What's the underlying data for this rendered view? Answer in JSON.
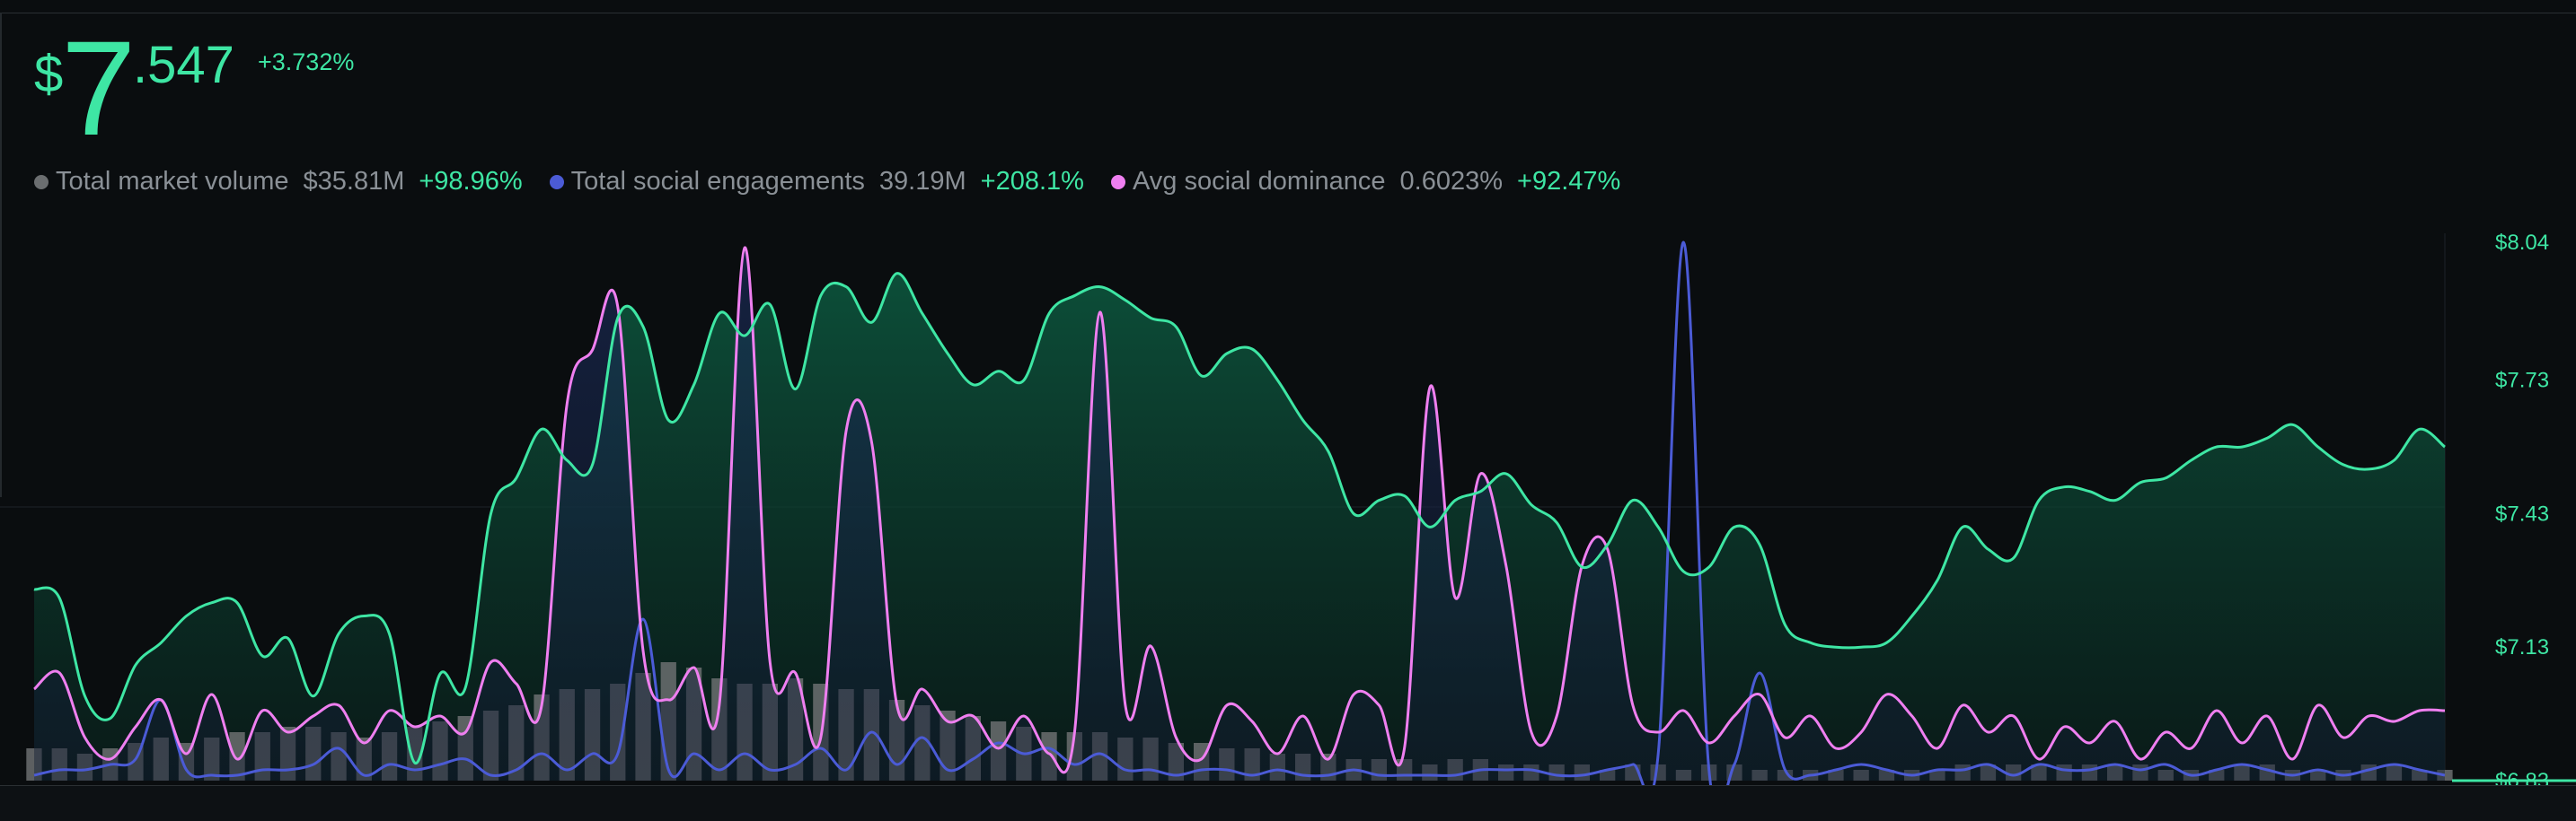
{
  "price": {
    "currency": "$",
    "integer": "7",
    "fraction": ".547",
    "change": "+3.732%"
  },
  "legend": [
    {
      "label": "Total market volume",
      "value": "$35.81M",
      "change": "+98.96%",
      "color": "#6b6e70"
    },
    {
      "label": "Total social engagements",
      "value": "39.19M",
      "change": "+208.1%",
      "color": "#4b5bd6"
    },
    {
      "label": "Avg social dominance",
      "value": "0.6023%",
      "change": "+92.47%",
      "color": "#ef7ff0"
    }
  ],
  "colors": {
    "price_line": "#3ee6a4",
    "positive": "#3ee6a4",
    "engagement_line": "#4b5bd6",
    "dominance_line": "#ef7ff0",
    "volume_bar": "#6b6e70",
    "background": "#0a0d0f"
  },
  "chart_data": {
    "type": "line",
    "x_points": 96,
    "y_axis": {
      "side": "right",
      "ticks": [
        "$8.04",
        "$7.73",
        "$7.43",
        "$7.13",
        "$6.83"
      ],
      "tick_values": [
        8.04,
        7.73,
        7.43,
        7.13,
        6.83
      ],
      "range": [
        6.83,
        8.04
      ]
    },
    "grid": true,
    "series": [
      {
        "name": "Price",
        "axis": "price",
        "values": [
          7.26,
          7.24,
          7.02,
          6.97,
          7.09,
          7.14,
          7.2,
          7.23,
          7.23,
          7.11,
          7.15,
          7.02,
          7.16,
          7.2,
          7.16,
          6.87,
          7.07,
          7.04,
          7.43,
          7.51,
          7.62,
          7.55,
          7.54,
          7.87,
          7.85,
          7.64,
          7.72,
          7.88,
          7.83,
          7.9,
          7.71,
          7.92,
          7.94,
          7.86,
          7.97,
          7.88,
          7.79,
          7.72,
          7.75,
          7.73,
          7.88,
          7.92,
          7.94,
          7.91,
          7.87,
          7.85,
          7.74,
          7.79,
          7.8,
          7.73,
          7.64,
          7.57,
          7.43,
          7.46,
          7.47,
          7.4,
          7.46,
          7.48,
          7.52,
          7.45,
          7.41,
          7.31,
          7.36,
          7.46,
          7.4,
          7.3,
          7.31,
          7.4,
          7.36,
          7.18,
          7.14,
          7.13,
          7.13,
          7.14,
          7.2,
          7.28,
          7.4,
          7.35,
          7.33,
          7.46,
          7.49,
          7.48,
          7.46,
          7.5,
          7.51,
          7.55,
          7.58,
          7.58,
          7.6,
          7.63,
          7.58,
          7.54,
          7.53,
          7.55,
          7.62,
          7.58
        ]
      },
      {
        "name": "Total market volume",
        "axis": "share",
        "values": [
          0.06,
          0.06,
          0.05,
          0.06,
          0.07,
          0.08,
          0.07,
          0.08,
          0.09,
          0.09,
          0.1,
          0.1,
          0.09,
          0.08,
          0.09,
          0.1,
          0.11,
          0.12,
          0.13,
          0.14,
          0.16,
          0.17,
          0.17,
          0.18,
          0.2,
          0.22,
          0.21,
          0.19,
          0.18,
          0.18,
          0.19,
          0.18,
          0.17,
          0.17,
          0.15,
          0.14,
          0.13,
          0.12,
          0.11,
          0.1,
          0.09,
          0.09,
          0.09,
          0.08,
          0.08,
          0.07,
          0.07,
          0.06,
          0.06,
          0.05,
          0.05,
          0.05,
          0.04,
          0.04,
          0.04,
          0.03,
          0.04,
          0.04,
          0.03,
          0.03,
          0.03,
          0.03,
          0.02,
          0.03,
          0.03,
          0.02,
          0.03,
          0.03,
          0.02,
          0.02,
          0.02,
          0.02,
          0.02,
          0.02,
          0.02,
          0.02,
          0.03,
          0.03,
          0.03,
          0.03,
          0.03,
          0.03,
          0.03,
          0.03,
          0.02,
          0.02,
          0.02,
          0.03,
          0.03,
          0.02,
          0.02,
          0.02,
          0.03,
          0.03,
          0.02,
          0.02
        ]
      },
      {
        "name": "Total social engagements",
        "axis": "share",
        "values": [
          0.01,
          0.02,
          0.02,
          0.03,
          0.04,
          0.15,
          0.02,
          0.01,
          0.01,
          0.02,
          0.02,
          0.03,
          0.06,
          0.01,
          0.03,
          0.02,
          0.03,
          0.04,
          0.01,
          0.02,
          0.05,
          0.02,
          0.05,
          0.05,
          0.3,
          0.02,
          0.05,
          0.02,
          0.05,
          0.02,
          0.03,
          0.06,
          0.02,
          0.09,
          0.03,
          0.08,
          0.02,
          0.04,
          0.07,
          0.05,
          0.06,
          0.03,
          0.05,
          0.02,
          0.02,
          0.01,
          0.02,
          0.02,
          0.01,
          0.02,
          0.01,
          0.01,
          0.02,
          0.01,
          0.01,
          0.01,
          0.01,
          0.02,
          0.02,
          0.02,
          0.01,
          0.01,
          0.02,
          0.03,
          0.05,
          1.0,
          0.02,
          0.03,
          0.2,
          0.02,
          0.01,
          0.02,
          0.03,
          0.02,
          0.01,
          0.02,
          0.02,
          0.03,
          0.01,
          0.03,
          0.02,
          0.02,
          0.03,
          0.02,
          0.03,
          0.01,
          0.02,
          0.03,
          0.02,
          0.01,
          0.02,
          0.01,
          0.02,
          0.03,
          0.02,
          0.01
        ]
      },
      {
        "name": "Avg social dominance",
        "axis": "share",
        "values": [
          0.17,
          0.2,
          0.08,
          0.04,
          0.1,
          0.15,
          0.05,
          0.16,
          0.04,
          0.13,
          0.09,
          0.12,
          0.14,
          0.07,
          0.13,
          0.1,
          0.12,
          0.09,
          0.22,
          0.18,
          0.14,
          0.7,
          0.8,
          0.88,
          0.24,
          0.15,
          0.21,
          0.14,
          0.99,
          0.22,
          0.2,
          0.08,
          0.65,
          0.63,
          0.14,
          0.17,
          0.11,
          0.12,
          0.06,
          0.12,
          0.05,
          0.09,
          0.87,
          0.14,
          0.25,
          0.08,
          0.04,
          0.14,
          0.11,
          0.05,
          0.12,
          0.04,
          0.16,
          0.14,
          0.06,
          0.73,
          0.34,
          0.57,
          0.4,
          0.09,
          0.12,
          0.4,
          0.43,
          0.14,
          0.09,
          0.13,
          0.07,
          0.12,
          0.16,
          0.08,
          0.12,
          0.06,
          0.09,
          0.16,
          0.12,
          0.06,
          0.14,
          0.09,
          0.12,
          0.04,
          0.1,
          0.07,
          0.11,
          0.04,
          0.09,
          0.06,
          0.13,
          0.07,
          0.12,
          0.04,
          0.14,
          0.08,
          0.12,
          0.11,
          0.13,
          0.13
        ]
      }
    ]
  }
}
